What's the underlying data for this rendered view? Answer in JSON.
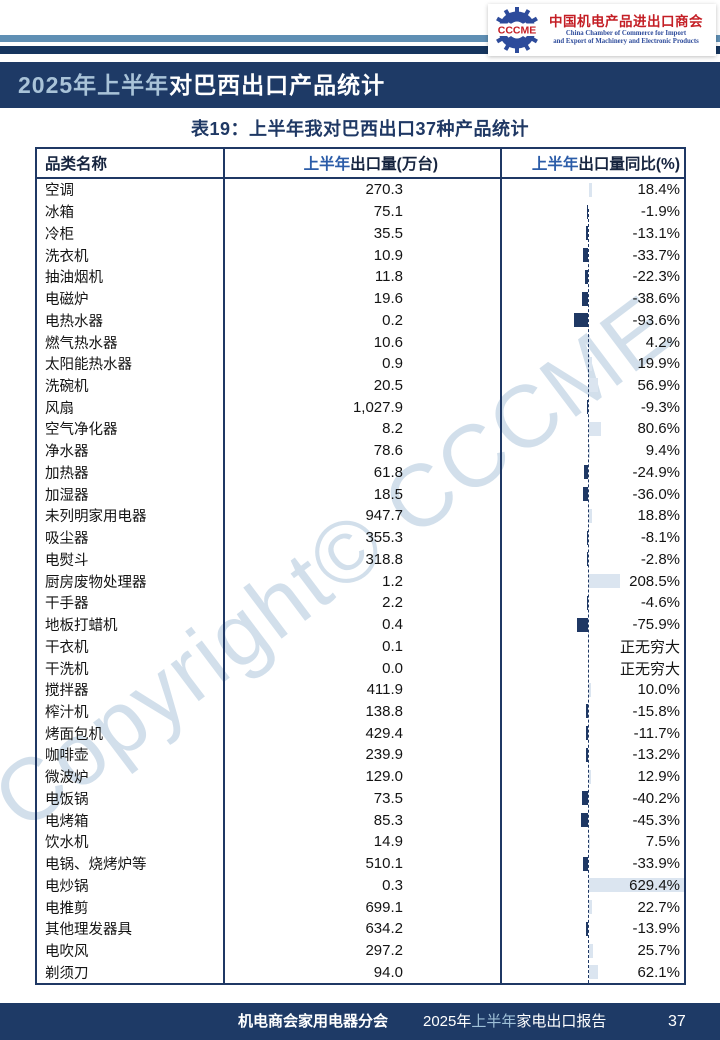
{
  "logo": {
    "abbr": "CCCME",
    "cn": "中国机电产品进出口商会",
    "en1": "China Chamber of Commerce for Import",
    "en2": "and Export of Machinery and Electronic Products"
  },
  "banner": {
    "highlight": "2025年上半年",
    "rest": "对巴西出口产品统计"
  },
  "watermark": "Copyright© CCCME",
  "table": {
    "title": "表19：上半年我对巴西出口37种产品统计",
    "columns": {
      "col1": "品类名称",
      "col2_highlight": "上半年",
      "col2_rest": "出口量(万台)",
      "col3_highlight": "上半年",
      "col3_rest": "出口量同比(%)"
    },
    "rows": [
      {
        "name": "空调",
        "volume": "270.3",
        "yoy": "18.4%",
        "yoy_pct": 18.4
      },
      {
        "name": "冰箱",
        "volume": "75.1",
        "yoy": "-1.9%",
        "yoy_pct": -1.9
      },
      {
        "name": "冷柜",
        "volume": "35.5",
        "yoy": "-13.1%",
        "yoy_pct": -13.1
      },
      {
        "name": "洗衣机",
        "volume": "10.9",
        "yoy": "-33.7%",
        "yoy_pct": -33.7
      },
      {
        "name": "抽油烟机",
        "volume": "11.8",
        "yoy": "-22.3%",
        "yoy_pct": -22.3
      },
      {
        "name": "电磁炉",
        "volume": "19.6",
        "yoy": "-38.6%",
        "yoy_pct": -38.6
      },
      {
        "name": "电热水器",
        "volume": "0.2",
        "yoy": "-93.6%",
        "yoy_pct": -93.6
      },
      {
        "name": "燃气热水器",
        "volume": "10.6",
        "yoy": "4.2%",
        "yoy_pct": 4.2
      },
      {
        "name": "太阳能热水器",
        "volume": "0.9",
        "yoy": "19.9%",
        "yoy_pct": 19.9
      },
      {
        "name": "洗碗机",
        "volume": "20.5",
        "yoy": "56.9%",
        "yoy_pct": 56.9
      },
      {
        "name": "风扇",
        "volume": "1,027.9",
        "yoy": "-9.3%",
        "yoy_pct": -9.3
      },
      {
        "name": "空气净化器",
        "volume": "8.2",
        "yoy": "80.6%",
        "yoy_pct": 80.6
      },
      {
        "name": "净水器",
        "volume": "78.6",
        "yoy": "9.4%",
        "yoy_pct": 9.4
      },
      {
        "name": "加热器",
        "volume": "61.8",
        "yoy": "-24.9%",
        "yoy_pct": -24.9
      },
      {
        "name": "加湿器",
        "volume": "18.5",
        "yoy": "-36.0%",
        "yoy_pct": -36.0
      },
      {
        "name": "未列明家用电器",
        "volume": "947.7",
        "yoy": "18.8%",
        "yoy_pct": 18.8
      },
      {
        "name": "吸尘器",
        "volume": "355.3",
        "yoy": "-8.1%",
        "yoy_pct": -8.1
      },
      {
        "name": "电熨斗",
        "volume": "318.8",
        "yoy": "-2.8%",
        "yoy_pct": -2.8
      },
      {
        "name": "厨房废物处理器",
        "volume": "1.2",
        "yoy": "208.5%",
        "yoy_pct": 208.5
      },
      {
        "name": "干手器",
        "volume": "2.2",
        "yoy": "-4.6%",
        "yoy_pct": -4.6
      },
      {
        "name": "地板打蜡机",
        "volume": "0.4",
        "yoy": "-75.9%",
        "yoy_pct": -75.9
      },
      {
        "name": "干衣机",
        "volume": "0.1",
        "yoy": "正无穷大",
        "yoy_pct": null
      },
      {
        "name": "干洗机",
        "volume": "0.0",
        "yoy": "正无穷大",
        "yoy_pct": null
      },
      {
        "name": "搅拌器",
        "volume": "411.9",
        "yoy": "10.0%",
        "yoy_pct": 10.0
      },
      {
        "name": "榨汁机",
        "volume": "138.8",
        "yoy": "-15.8%",
        "yoy_pct": -15.8
      },
      {
        "name": "烤面包机",
        "volume": "429.4",
        "yoy": "-11.7%",
        "yoy_pct": -11.7
      },
      {
        "name": "咖啡壶",
        "volume": "239.9",
        "yoy": "-13.2%",
        "yoy_pct": -13.2
      },
      {
        "name": "微波炉",
        "volume": "129.0",
        "yoy": "12.9%",
        "yoy_pct": 12.9
      },
      {
        "name": "电饭锅",
        "volume": "73.5",
        "yoy": "-40.2%",
        "yoy_pct": -40.2
      },
      {
        "name": "电烤箱",
        "volume": "85.3",
        "yoy": "-45.3%",
        "yoy_pct": -45.3
      },
      {
        "name": "饮水机",
        "volume": "14.9",
        "yoy": "7.5%",
        "yoy_pct": 7.5
      },
      {
        "name": "电锅、烧烤炉等",
        "volume": "510.1",
        "yoy": "-33.9%",
        "yoy_pct": -33.9
      },
      {
        "name": "电炒锅",
        "volume": "0.3",
        "yoy": "629.4%",
        "yoy_pct": 629.4
      },
      {
        "name": "电推剪",
        "volume": "699.1",
        "yoy": "22.7%",
        "yoy_pct": 22.7
      },
      {
        "name": "其他理发器具",
        "volume": "634.2",
        "yoy": "-13.9%",
        "yoy_pct": -13.9
      },
      {
        "name": "电吹风",
        "volume": "297.2",
        "yoy": "25.7%",
        "yoy_pct": 25.7
      },
      {
        "name": "剃须刀",
        "volume": "94.0",
        "yoy": "62.1%",
        "yoy_pct": 62.1
      }
    ]
  },
  "chart_data": {
    "type": "bar",
    "title": "上半年出口量同比(%)",
    "categories": [
      "空调",
      "冰箱",
      "冷柜",
      "洗衣机",
      "抽油烟机",
      "电磁炉",
      "电热水器",
      "燃气热水器",
      "太阳能热水器",
      "洗碗机",
      "风扇",
      "空气净化器",
      "净水器",
      "加热器",
      "加湿器",
      "未列明家用电器",
      "吸尘器",
      "电熨斗",
      "厨房废物处理器",
      "干手器",
      "地板打蜡机",
      "干衣机",
      "干洗机",
      "搅拌器",
      "榨汁机",
      "烤面包机",
      "咖啡壶",
      "微波炉",
      "电饭锅",
      "电烤箱",
      "饮水机",
      "电锅、烧烤炉等",
      "电炒锅",
      "电推剪",
      "其他理发器具",
      "电吹风",
      "剃须刀"
    ],
    "values": [
      18.4,
      -1.9,
      -13.1,
      -33.7,
      -22.3,
      -38.6,
      -93.6,
      4.2,
      19.9,
      56.9,
      -9.3,
      80.6,
      9.4,
      -24.9,
      -36.0,
      18.8,
      -8.1,
      -2.8,
      208.5,
      -4.6,
      -75.9,
      null,
      null,
      10.0,
      -15.8,
      -11.7,
      -13.2,
      12.9,
      -40.2,
      -45.3,
      7.5,
      -33.9,
      629.4,
      22.7,
      -13.9,
      25.7,
      62.1
    ],
    "xlabel": "品类名称",
    "ylabel": "上半年出口量同比(%)",
    "legend": [],
    "axis_style": "dashed-zero-axis",
    "bar_colors": {
      "negative": "#1f3864",
      "positive": "#dbe5f0"
    }
  },
  "footer": {
    "left": "机电商会家用电器分会",
    "center_prefix": "2025年",
    "center_highlight": "上半年",
    "center_rest": "家电出口报告",
    "page": "37"
  },
  "colors": {
    "navy": "#1e3a66",
    "table_border": "#1f3864",
    "header_highlight_blue": "#2b5ca8",
    "banner_highlight": "#a9c3d8",
    "stripe_light": "#5f8fb4",
    "stripe_dark": "#16355e",
    "logo_red": "#c41e25",
    "logo_blue": "#2d4b9b",
    "bar_negative": "#1f3864",
    "bar_positive": "#dbe5f0",
    "watermark": "#b5cbde"
  }
}
